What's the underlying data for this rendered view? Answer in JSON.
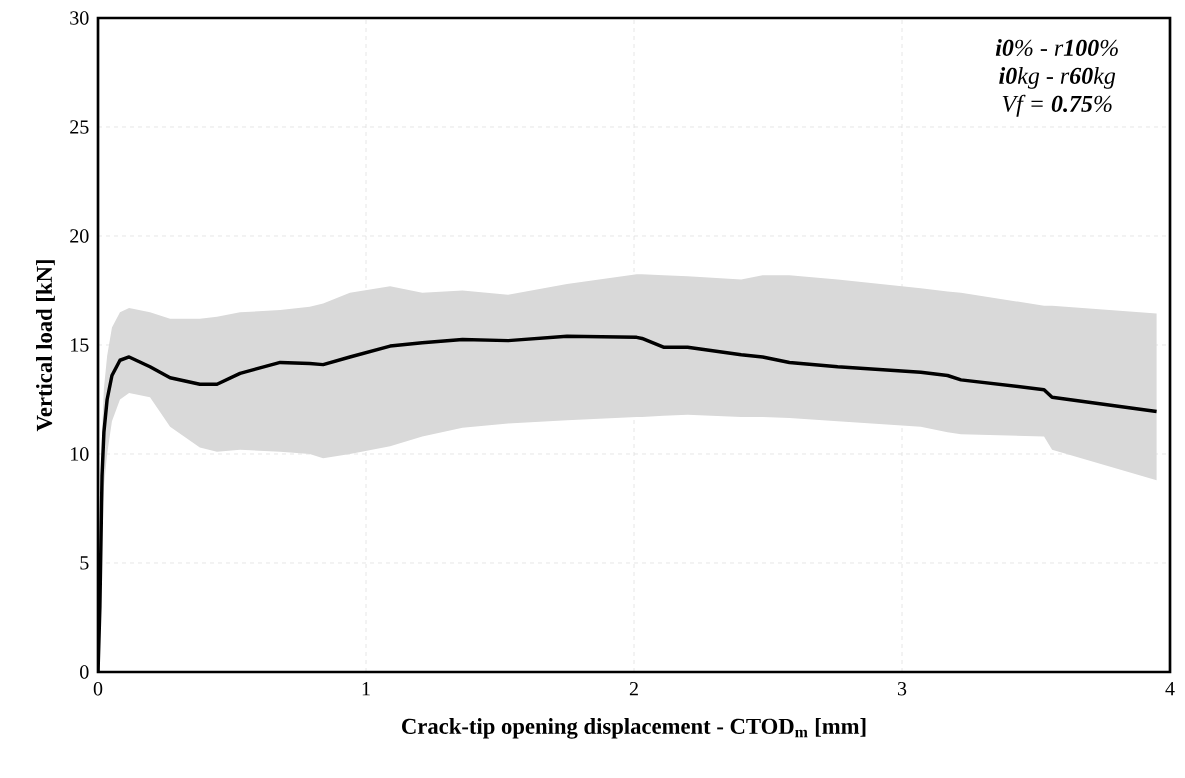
{
  "chart_data": {
    "type": "line",
    "xlabel": "Crack-tip opening displacement - CTOD$_{m}$ [mm]",
    "ylabel": "Vertical load [kN]",
    "annotations": [
      "**i0**% - r**100**%",
      "**i0**kg - r**60**kg",
      "Vf = **0.75**%"
    ],
    "x": [
      0,
      0.007,
      0.015,
      0.022,
      0.034,
      0.052,
      0.082,
      0.116,
      0.194,
      0.269,
      0.38,
      0.444,
      0.53,
      0.68,
      0.79,
      0.84,
      0.94,
      1.09,
      1.21,
      1.36,
      1.53,
      1.75,
      2.01,
      2.03,
      2.11,
      2.2,
      2.4,
      2.48,
      2.58,
      2.76,
      3.07,
      3.17,
      3.22,
      3.53,
      3.56,
      3.95
    ],
    "series": [
      {
        "color": "#000000",
        "values": [
          0,
          3,
          9,
          11,
          12.5,
          13.6,
          14.3,
          14.45,
          14.0,
          13.5,
          13.2,
          13.2,
          13.7,
          14.2,
          14.15,
          14.1,
          14.45,
          14.95,
          15.1,
          15.25,
          15.2,
          15.4,
          15.35,
          15.3,
          14.9,
          14.9,
          14.55,
          14.45,
          14.2,
          14.0,
          13.75,
          13.6,
          13.4,
          12.95,
          12.6,
          11.95
        ],
        "lower": [
          0,
          2,
          7,
          8.5,
          10,
          11.5,
          12.5,
          12.8,
          12.6,
          11.25,
          10.3,
          10.1,
          10.2,
          10.1,
          10.0,
          9.8,
          10.0,
          10.35,
          10.8,
          11.2,
          11.4,
          11.55,
          11.7,
          11.7,
          11.75,
          11.8,
          11.7,
          11.7,
          11.65,
          11.5,
          11.25,
          11.0,
          10.9,
          10.8,
          10.2,
          8.8
        ],
        "upper": [
          0,
          4,
          11,
          13,
          14.5,
          15.8,
          16.5,
          16.7,
          16.5,
          16.2,
          16.2,
          16.3,
          16.5,
          16.6,
          16.75,
          16.9,
          17.4,
          17.7,
          17.4,
          17.5,
          17.3,
          17.8,
          18.25,
          18.25,
          18.2,
          18.15,
          18.0,
          18.2,
          18.2,
          18.0,
          17.6,
          17.45,
          17.4,
          16.8,
          16.8,
          16.45
        ]
      }
    ],
    "xlim": [
      0,
      4
    ],
    "xticks": [
      0,
      1,
      2,
      3,
      4
    ],
    "ylim": [
      0,
      30
    ],
    "yticks": [
      0,
      5,
      10,
      15,
      20,
      25,
      30
    ],
    "grid": true
  }
}
